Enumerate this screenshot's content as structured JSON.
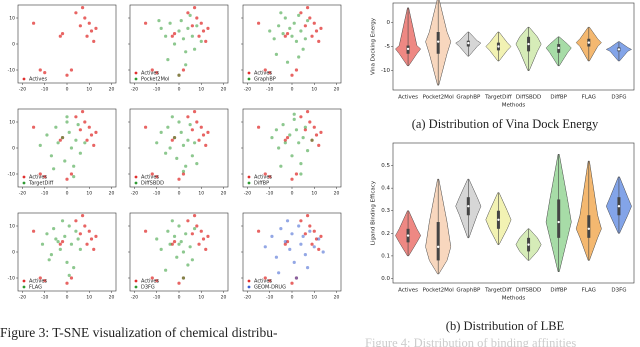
{
  "chart_data": [
    {
      "type": "scatter",
      "xlim": [
        -22,
        22
      ],
      "ylim": [
        -15,
        15
      ],
      "xticks": [
        -20,
        -10,
        0,
        10,
        20
      ],
      "yticks": [
        -10,
        0,
        10
      ],
      "legend": "lower left",
      "series": [
        {
          "name": "Actives",
          "color": "#e0302f",
          "x": [
            -15,
            -3,
            -2,
            4,
            6,
            8,
            9,
            10,
            11,
            12,
            13,
            7,
            -12,
            -10,
            0,
            2
          ],
          "y": [
            8,
            3,
            4,
            12,
            7,
            10,
            3,
            8,
            5,
            1,
            6,
            14,
            -10,
            -11,
            -12,
            -10
          ]
        }
      ]
    },
    {
      "type": "scatter",
      "xlim": [
        -22,
        22
      ],
      "ylim": [
        -15,
        15
      ],
      "xticks": [
        -20,
        -10,
        0,
        10,
        20
      ],
      "yticks": [
        -10,
        0,
        10
      ],
      "legend": "lower left",
      "series": [
        {
          "name": "Actives",
          "color": "#e0302f",
          "x": [
            -15,
            -3,
            -2,
            4,
            6,
            8,
            9,
            10,
            11,
            12,
            13,
            7,
            -12,
            -10,
            0,
            2
          ],
          "y": [
            8,
            3,
            4,
            12,
            7,
            10,
            3,
            8,
            5,
            1,
            6,
            14,
            -10,
            -11,
            -12,
            -10
          ]
        },
        {
          "name": "Pocket2Mol",
          "color": "#2f9a33",
          "x": [
            -8,
            -6,
            -4,
            -2,
            0,
            1,
            2,
            3,
            4,
            5,
            6,
            7,
            8,
            -5,
            3,
            0,
            10,
            -9
          ],
          "y": [
            6,
            3,
            8,
            0,
            5,
            9,
            2,
            -3,
            6,
            11,
            3,
            -2,
            7,
            -6,
            -8,
            -12,
            1,
            9
          ]
        }
      ]
    },
    {
      "type": "scatter",
      "xlim": [
        -22,
        22
      ],
      "ylim": [
        -15,
        15
      ],
      "xticks": [
        -20,
        -10,
        0,
        10,
        20
      ],
      "yticks": [
        -10,
        0,
        10
      ],
      "legend": "lower left",
      "series": [
        {
          "name": "Actives",
          "color": "#e0302f",
          "x": [
            -15,
            -3,
            -2,
            4,
            6,
            8,
            9,
            10,
            11,
            12,
            13,
            7,
            -12,
            -10,
            0,
            2
          ],
          "y": [
            8,
            3,
            4,
            12,
            7,
            10,
            3,
            8,
            5,
            1,
            6,
            14,
            -10,
            -11,
            -12,
            -10
          ]
        },
        {
          "name": "GraphBP",
          "color": "#2f9a33",
          "x": [
            -10,
            -8,
            -6,
            -4,
            -3,
            -1,
            0,
            1,
            2,
            3,
            4,
            5,
            6,
            -7,
            -2,
            3,
            7,
            -5
          ],
          "y": [
            5,
            2,
            7,
            4,
            10,
            6,
            3,
            8,
            1,
            11,
            5,
            -2,
            2,
            -4,
            -7,
            -5,
            9,
            12
          ]
        }
      ]
    },
    {
      "type": "scatter",
      "xlim": [
        -22,
        22
      ],
      "ylim": [
        -15,
        15
      ],
      "xticks": [
        -20,
        -10,
        0,
        10,
        20
      ],
      "yticks": [
        -10,
        0,
        10
      ],
      "legend": "lower left",
      "series": [
        {
          "name": "Actives",
          "color": "#e0302f",
          "x": [
            -15,
            -3,
            -2,
            4,
            6,
            8,
            9,
            10,
            11,
            12,
            13,
            7,
            -12,
            -10,
            0,
            2
          ],
          "y": [
            8,
            3,
            4,
            12,
            7,
            10,
            3,
            8,
            5,
            1,
            6,
            14,
            -10,
            -11,
            -12,
            -10
          ]
        },
        {
          "name": "TargetDiff",
          "color": "#2f9a33",
          "x": [
            -12,
            -9,
            -7,
            -5,
            -4,
            -2,
            -1,
            0,
            1,
            2,
            3,
            4,
            5,
            6,
            8,
            -6,
            0,
            3
          ],
          "y": [
            1,
            5,
            -3,
            8,
            2,
            4,
            -5,
            10,
            6,
            0,
            -7,
            3,
            9,
            -2,
            2,
            -8,
            12,
            -11
          ]
        }
      ]
    },
    {
      "type": "scatter",
      "xlim": [
        -22,
        22
      ],
      "ylim": [
        -15,
        15
      ],
      "xticks": [
        -20,
        -10,
        0,
        10,
        20
      ],
      "yticks": [
        -10,
        0,
        10
      ],
      "legend": "lower left",
      "series": [
        {
          "name": "Actives",
          "color": "#e0302f",
          "x": [
            -15,
            -3,
            -2,
            4,
            6,
            8,
            9,
            10,
            11,
            12,
            13,
            7,
            -12,
            -10,
            0,
            2
          ],
          "y": [
            8,
            3,
            4,
            12,
            7,
            10,
            3,
            8,
            5,
            1,
            6,
            14,
            -10,
            -11,
            -12,
            -10
          ]
        },
        {
          "name": "DiffSBDD",
          "color": "#2f9a33",
          "x": [
            -10,
            -8,
            -6,
            -5,
            -4,
            -2,
            -1,
            0,
            1,
            2,
            3,
            4,
            5,
            6,
            7,
            8,
            -3,
            2
          ],
          "y": [
            2,
            6,
            -2,
            8,
            0,
            4,
            -4,
            10,
            6,
            1,
            -7,
            3,
            9,
            -3,
            2,
            -6,
            12,
            -9
          ]
        }
      ]
    },
    {
      "type": "scatter",
      "xlim": [
        -22,
        22
      ],
      "ylim": [
        -15,
        15
      ],
      "xticks": [
        -20,
        -10,
        0,
        10,
        20
      ],
      "yticks": [
        -10,
        0,
        10
      ],
      "legend": "lower left",
      "series": [
        {
          "name": "Actives",
          "color": "#e0302f",
          "x": [
            -15,
            -3,
            -2,
            4,
            6,
            8,
            9,
            10,
            11,
            12,
            13,
            7,
            -12,
            -10,
            0,
            2
          ],
          "y": [
            8,
            3,
            4,
            12,
            7,
            10,
            3,
            8,
            5,
            1,
            6,
            14,
            -10,
            -11,
            -12,
            -10
          ]
        },
        {
          "name": "DiffBP",
          "color": "#2f9a33",
          "x": [
            -9,
            -7,
            -6,
            -4,
            -3,
            -1,
            0,
            1,
            2,
            3,
            4,
            5,
            6,
            7,
            9,
            -5,
            1,
            4
          ],
          "y": [
            4,
            7,
            0,
            9,
            2,
            5,
            -3,
            11,
            7,
            2,
            -6,
            4,
            8,
            -1,
            3,
            -7,
            13,
            -10
          ]
        }
      ]
    },
    {
      "type": "scatter",
      "xlim": [
        -22,
        22
      ],
      "ylim": [
        -15,
        15
      ],
      "xticks": [
        -20,
        -10,
        0,
        10,
        20
      ],
      "yticks": [
        -10,
        0,
        10
      ],
      "legend": "lower left",
      "series": [
        {
          "name": "Actives",
          "color": "#e0302f",
          "x": [
            -15,
            -3,
            -2,
            4,
            6,
            8,
            9,
            10,
            11,
            12,
            13,
            7,
            -12,
            -10,
            0,
            2
          ],
          "y": [
            8,
            3,
            4,
            12,
            7,
            10,
            3,
            8,
            5,
            1,
            6,
            14,
            -10,
            -11,
            -12,
            -10
          ]
        },
        {
          "name": "FLAG",
          "color": "#2f9a33",
          "x": [
            -11,
            -9,
            -7,
            -6,
            -4,
            -3,
            -1,
            0,
            1,
            2,
            3,
            5,
            6,
            -8,
            -2,
            1,
            4,
            -5
          ],
          "y": [
            3,
            7,
            -1,
            9,
            4,
            1,
            6,
            -4,
            10,
            3,
            -6,
            5,
            1,
            -3,
            12,
            -9,
            8,
            5
          ]
        }
      ]
    },
    {
      "type": "scatter",
      "xlim": [
        -22,
        22
      ],
      "ylim": [
        -15,
        15
      ],
      "xticks": [
        -20,
        -10,
        0,
        10,
        20
      ],
      "yticks": [
        -10,
        0,
        10
      ],
      "legend": "lower left",
      "series": [
        {
          "name": "Actives",
          "color": "#e0302f",
          "x": [
            -15,
            -3,
            -2,
            4,
            6,
            8,
            9,
            10,
            11,
            12,
            13,
            7,
            -12,
            -10,
            0,
            2
          ],
          "y": [
            8,
            3,
            4,
            12,
            7,
            10,
            3,
            8,
            5,
            1,
            6,
            14,
            -10,
            -11,
            -12,
            -10
          ]
        },
        {
          "name": "D3FG",
          "color": "#2f9a33",
          "x": [
            -10,
            -8,
            -5,
            -4,
            -2,
            -1,
            0,
            1,
            2,
            3,
            4,
            5,
            7,
            -6,
            -3,
            2,
            6,
            0
          ],
          "y": [
            5,
            1,
            8,
            3,
            6,
            -2,
            10,
            4,
            0,
            7,
            -5,
            2,
            9,
            -7,
            12,
            -10,
            -3,
            3
          ]
        }
      ]
    },
    {
      "type": "scatter",
      "xlim": [
        -22,
        22
      ],
      "ylim": [
        -15,
        15
      ],
      "xticks": [
        -20,
        -10,
        0,
        10,
        20
      ],
      "yticks": [
        -10,
        0,
        10
      ],
      "legend": "lower left",
      "series": [
        {
          "name": "Actives",
          "color": "#e0302f",
          "x": [
            -15,
            -3,
            -2,
            4,
            6,
            8,
            9,
            10,
            11,
            12,
            13,
            7,
            -12,
            -10,
            0,
            2
          ],
          "y": [
            8,
            3,
            4,
            12,
            7,
            10,
            3,
            8,
            5,
            1,
            6,
            14,
            -10,
            -11,
            -12,
            -10
          ]
        },
        {
          "name": "GEOM-DRUG",
          "color": "#3a5fd0",
          "x": [
            -12,
            -9,
            -7,
            -5,
            -3,
            -1,
            0,
            1,
            3,
            4,
            5,
            6,
            8,
            10,
            12,
            -6,
            2,
            7,
            14,
            -2
          ],
          "y": [
            2,
            6,
            -2,
            9,
            4,
            1,
            7,
            -4,
            10,
            3,
            6,
            -1,
            8,
            2,
            5,
            -8,
            -10,
            -6,
            0,
            12
          ]
        }
      ]
    },
    {
      "type": "violin",
      "ylabel": "Vina Docking Energy",
      "xlabel": "Methods",
      "ylim": [
        -14,
        4
      ],
      "yticks": [
        -10,
        -5,
        0
      ],
      "categories": [
        "Actives",
        "Pocket2Mol",
        "GraphBP",
        "TargetDiff",
        "DiffSBDD",
        "DiffBP",
        "FLAG",
        "D3FG"
      ],
      "colors": [
        "#e8605a",
        "#f6c9a8",
        "#c8c8c8",
        "#eeee9a",
        "#c8e6a0",
        "#8ad08a",
        "#f0a040",
        "#5a86e0"
      ],
      "stats": {
        "min": [
          -9,
          -13,
          -7,
          -8,
          -10,
          -9,
          -8,
          -8
        ],
        "q1": [
          -6.5,
          -6.5,
          -5,
          -5.8,
          -6,
          -6.3,
          -5,
          -6
        ],
        "median": [
          -5.5,
          -4,
          -4.3,
          -5,
          -4.5,
          -5.3,
          -4.2,
          -5.6
        ],
        "q3": [
          -4.8,
          -2,
          -3.8,
          -4.2,
          -3,
          -4.5,
          -3.4,
          -5.2
        ],
        "max": [
          3,
          5,
          -2,
          -2,
          -1,
          -3,
          -1,
          -4
        ]
      }
    },
    {
      "type": "violin",
      "ylabel": "Ligand Binding Efficacy",
      "xlabel": "Methods",
      "ylim": [
        -0.02,
        0.6
      ],
      "yticks": [
        {
          "value": 0,
          "label": "0.0"
        },
        0.1,
        0.2,
        0.3,
        0.4,
        0.5
      ],
      "categories": [
        "Actives",
        "Pocket2Mol",
        "GraphBP",
        "TargetDiff",
        "DiffSBDD",
        "DiffBP",
        "FLAG",
        "D3FG"
      ],
      "colors": [
        "#e8605a",
        "#f6c9a8",
        "#c8c8c8",
        "#eeee9a",
        "#c8e6a0",
        "#8ad08a",
        "#f0a040",
        "#5a86e0"
      ],
      "stats": {
        "min": [
          0.1,
          0.02,
          0.18,
          0.15,
          0.08,
          0.03,
          0.08,
          0.2
        ],
        "q1": [
          0.16,
          0.08,
          0.28,
          0.22,
          0.12,
          0.18,
          0.18,
          0.28
        ],
        "median": [
          0.19,
          0.14,
          0.32,
          0.26,
          0.15,
          0.25,
          0.22,
          0.32
        ],
        "q3": [
          0.22,
          0.25,
          0.36,
          0.3,
          0.18,
          0.35,
          0.28,
          0.36
        ],
        "max": [
          0.3,
          0.44,
          0.44,
          0.38,
          0.22,
          0.55,
          0.52,
          0.45
        ]
      }
    }
  ],
  "captions": {
    "figure3": "Figure 3: T-SNE visualization of chemical distribu-",
    "a": "(a)  Distribution of Vina Dock Energy",
    "b": "(b)  Distribution of LBE",
    "figure4": "Figure 4: Distribution of binding affinities"
  }
}
